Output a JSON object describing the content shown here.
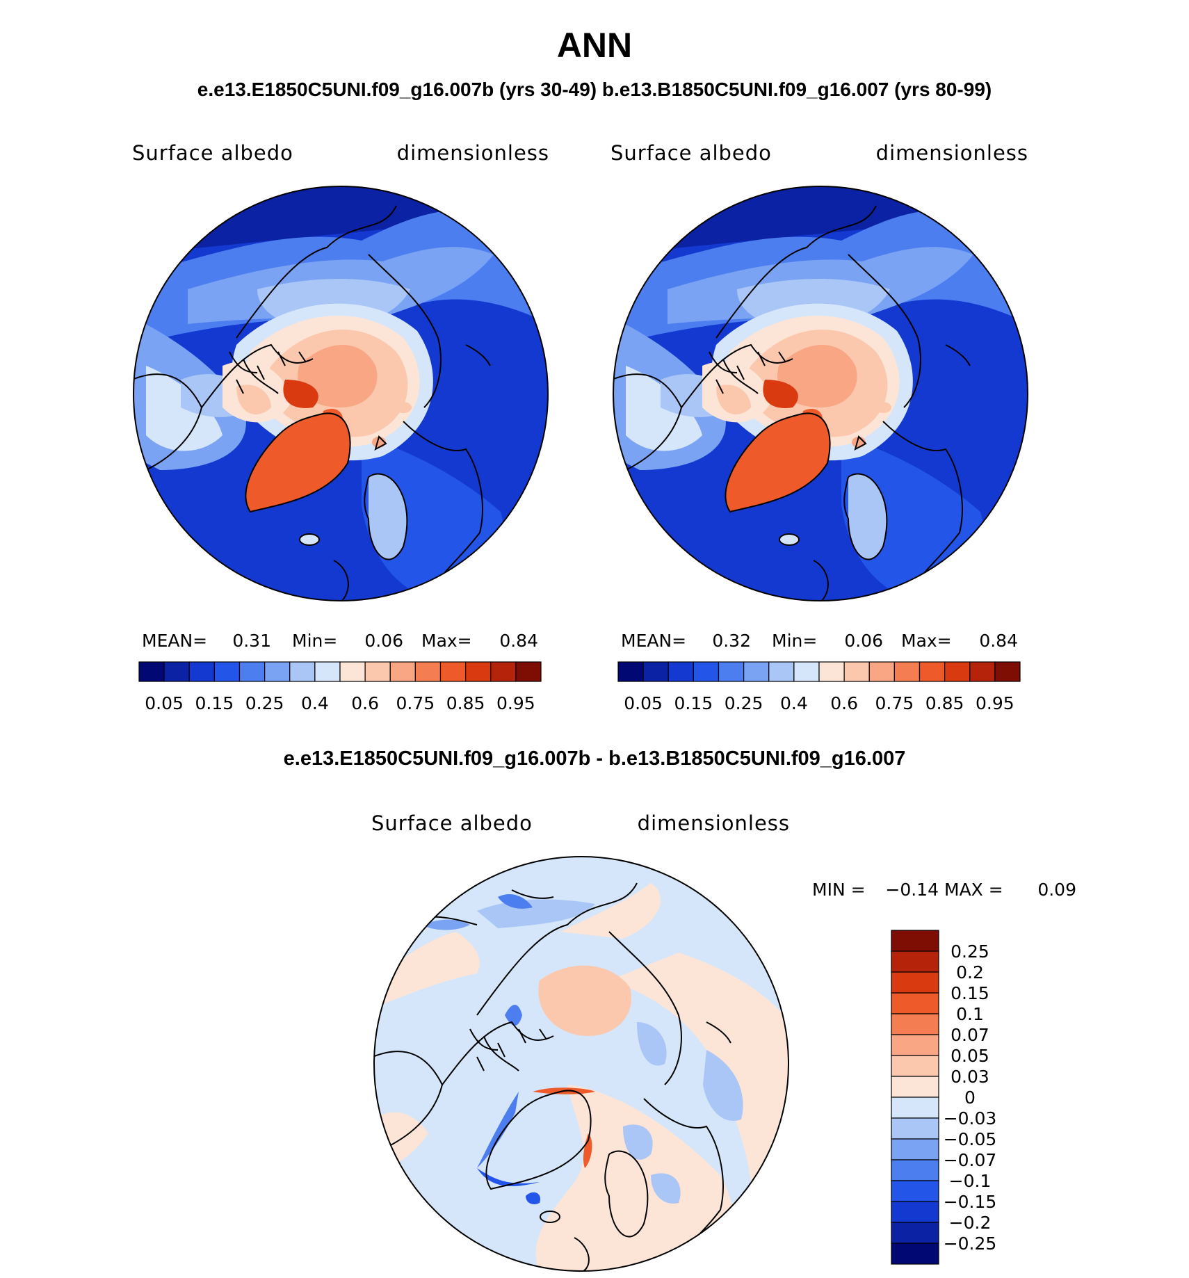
{
  "title": "ANN",
  "subtitle": "e.e13.E1850C5UNI.f09_g16.007b (yrs 30-49)  b.e13.B1850C5UNI.f09_g16.007 (yrs 80-99)",
  "chart_data": [
    {
      "type": "map",
      "panel": "test case",
      "projection": "north polar stereographic",
      "variable_label": "Surface albedo",
      "units_label": "dimensionless",
      "stats": {
        "mean_label": "MEAN=",
        "mean": "0.31",
        "min_label": "Min=",
        "min": "0.06",
        "max_label": "Max=",
        "max": "0.84"
      },
      "colorbar": {
        "orientation": "horizontal",
        "colors": [
          "#020873",
          "#0a22a3",
          "#1339d0",
          "#2356e8",
          "#4d7ef0",
          "#7aa3f3",
          "#a9c6f6",
          "#d5e6fa",
          "#fce5d6",
          "#fbc8ae",
          "#f8a683",
          "#f47e52",
          "#ee5a2a",
          "#d93a10",
          "#b4230a",
          "#7e0d04"
        ],
        "tick_labels": [
          "0.05",
          "0.15",
          "0.25",
          "0.4",
          "0.6",
          "0.75",
          "0.85",
          "0.95"
        ]
      }
    },
    {
      "type": "map",
      "panel": "control case",
      "projection": "north polar stereographic",
      "variable_label": "Surface albedo",
      "units_label": "dimensionless",
      "stats": {
        "mean_label": "MEAN=",
        "mean": "0.32",
        "min_label": "Min=",
        "min": "0.06",
        "max_label": "Max=",
        "max": "0.84"
      },
      "colorbar": {
        "orientation": "horizontal",
        "colors": [
          "#020873",
          "#0a22a3",
          "#1339d0",
          "#2356e8",
          "#4d7ef0",
          "#7aa3f3",
          "#a9c6f6",
          "#d5e6fa",
          "#fce5d6",
          "#fbc8ae",
          "#f8a683",
          "#f47e52",
          "#ee5a2a",
          "#d93a10",
          "#b4230a",
          "#7e0d04"
        ],
        "tick_labels": [
          "0.05",
          "0.15",
          "0.25",
          "0.4",
          "0.6",
          "0.75",
          "0.85",
          "0.95"
        ]
      }
    },
    {
      "type": "map",
      "panel": "difference",
      "title": "e.e13.E1850C5UNI.f09_g16.007b - b.e13.B1850C5UNI.f09_g16.007",
      "projection": "north polar stereographic",
      "variable_label": "Surface albedo",
      "units_label": "dimensionless",
      "stats": {
        "min_label": "MIN =",
        "min": "−0.14",
        "max_label": "MAX =",
        "max": "0.09"
      },
      "colorbar": {
        "orientation": "vertical",
        "colors": [
          "#7e0d04",
          "#b4230a",
          "#d93a10",
          "#ee5a2a",
          "#f47e52",
          "#f8a683",
          "#fbc8ae",
          "#fce5d6",
          "#d5e6fa",
          "#a9c6f6",
          "#7aa3f3",
          "#4d7ef0",
          "#2356e8",
          "#1339d0",
          "#0a22a3",
          "#020873"
        ],
        "tick_labels": [
          "0.25",
          "0.2",
          "0.15",
          "0.1",
          "0.07",
          "0.05",
          "0.03",
          "0",
          "−0.03",
          "−0.05",
          "−0.07",
          "−0.1",
          "−0.15",
          "−0.2",
          "−0.25"
        ]
      }
    }
  ]
}
